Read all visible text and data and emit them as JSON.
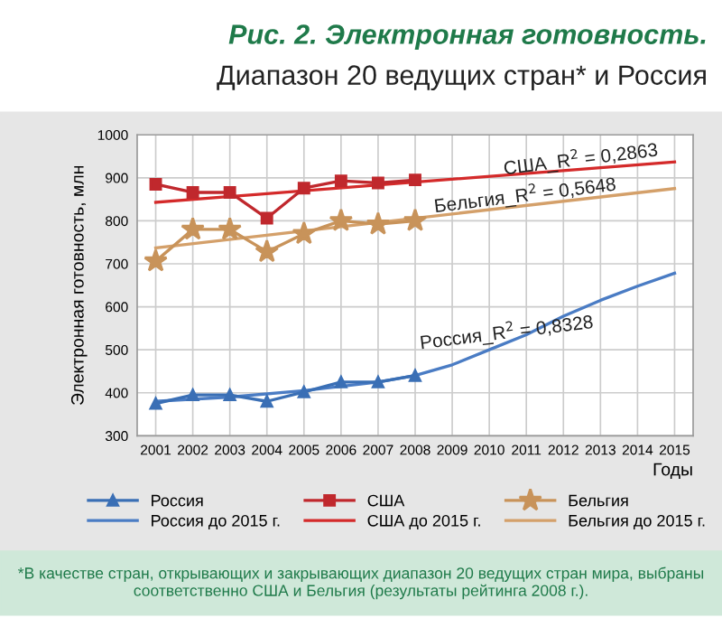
{
  "chart_data": {
    "type": "line",
    "title": "Рис. 2. Электронная готовность.",
    "subtitle": "Диапазон 20 ведущих стран* и Россия",
    "xlabel": "Годы",
    "ylabel": "Электронная готовность, млн",
    "xlim": [
      2000.5,
      2015.5
    ],
    "xticks": [
      2001,
      2002,
      2003,
      2004,
      2005,
      2006,
      2007,
      2008,
      2009,
      2010,
      2011,
      2012,
      2013,
      2014,
      2015
    ],
    "ylim": [
      300,
      1000
    ],
    "yticks": [
      300,
      400,
      500,
      600,
      700,
      800,
      900,
      1000
    ],
    "grid": true,
    "legend": "bottom",
    "line_style": "solid",
    "series": [
      {
        "name": "Россия",
        "color": "#3a6fb5",
        "marker": "triangle",
        "x": [
          2001,
          2002,
          2003,
          2004,
          2005,
          2006,
          2007,
          2008
        ],
        "values": [
          375,
          395,
          395,
          380,
          402,
          425,
          425,
          440
        ]
      },
      {
        "name": "Россия до 2015 г.",
        "color": "#4a7cc4",
        "marker": "none",
        "x": [
          2001,
          2003,
          2005,
          2007,
          2008,
          2009,
          2010,
          2011,
          2012,
          2013,
          2014,
          2015
        ],
        "values": [
          380,
          390,
          405,
          425,
          440,
          465,
          500,
          535,
          578,
          615,
          648,
          678
        ]
      },
      {
        "name": "США",
        "color": "#c0282d",
        "marker": "square",
        "x": [
          2001,
          2002,
          2003,
          2004,
          2005,
          2006,
          2007,
          2008
        ],
        "values": [
          885,
          866,
          866,
          806,
          876,
          893,
          888,
          895
        ]
      },
      {
        "name": "США до 2015 г.",
        "color": "#d42a2a",
        "marker": "none",
        "x": [
          2001,
          2015
        ],
        "values": [
          843,
          937
        ]
      },
      {
        "name": "Бельгия",
        "color": "#c8935a",
        "marker": "star",
        "x": [
          2001,
          2002,
          2003,
          2004,
          2005,
          2006,
          2007,
          2008
        ],
        "values": [
          706,
          780,
          780,
          728,
          770,
          800,
          792,
          800
        ]
      },
      {
        "name": "Бельгия до 2015 г.",
        "color": "#d4a06a",
        "marker": "none",
        "x": [
          2001,
          2015
        ],
        "values": [
          737,
          875
        ]
      }
    ],
    "annotations": [
      {
        "text": "США_R$^{2}$ = 0,2863",
        "x": 2012.5,
        "y": 920
      },
      {
        "text": "Бельгия_R$^{2}$ = 0,5648",
        "x": 2011,
        "y": 836
      },
      {
        "text": "Россия_R$^{2}$ = 0,8328",
        "x": 2010.5,
        "y": 517
      },
      "*В качестве стран, открывающих и закрывающих диапазон 20 ведущих стран мира, выбраны соответственно США и Бельгия (результаты рейтинга 2008 г.)."
    ]
  }
}
